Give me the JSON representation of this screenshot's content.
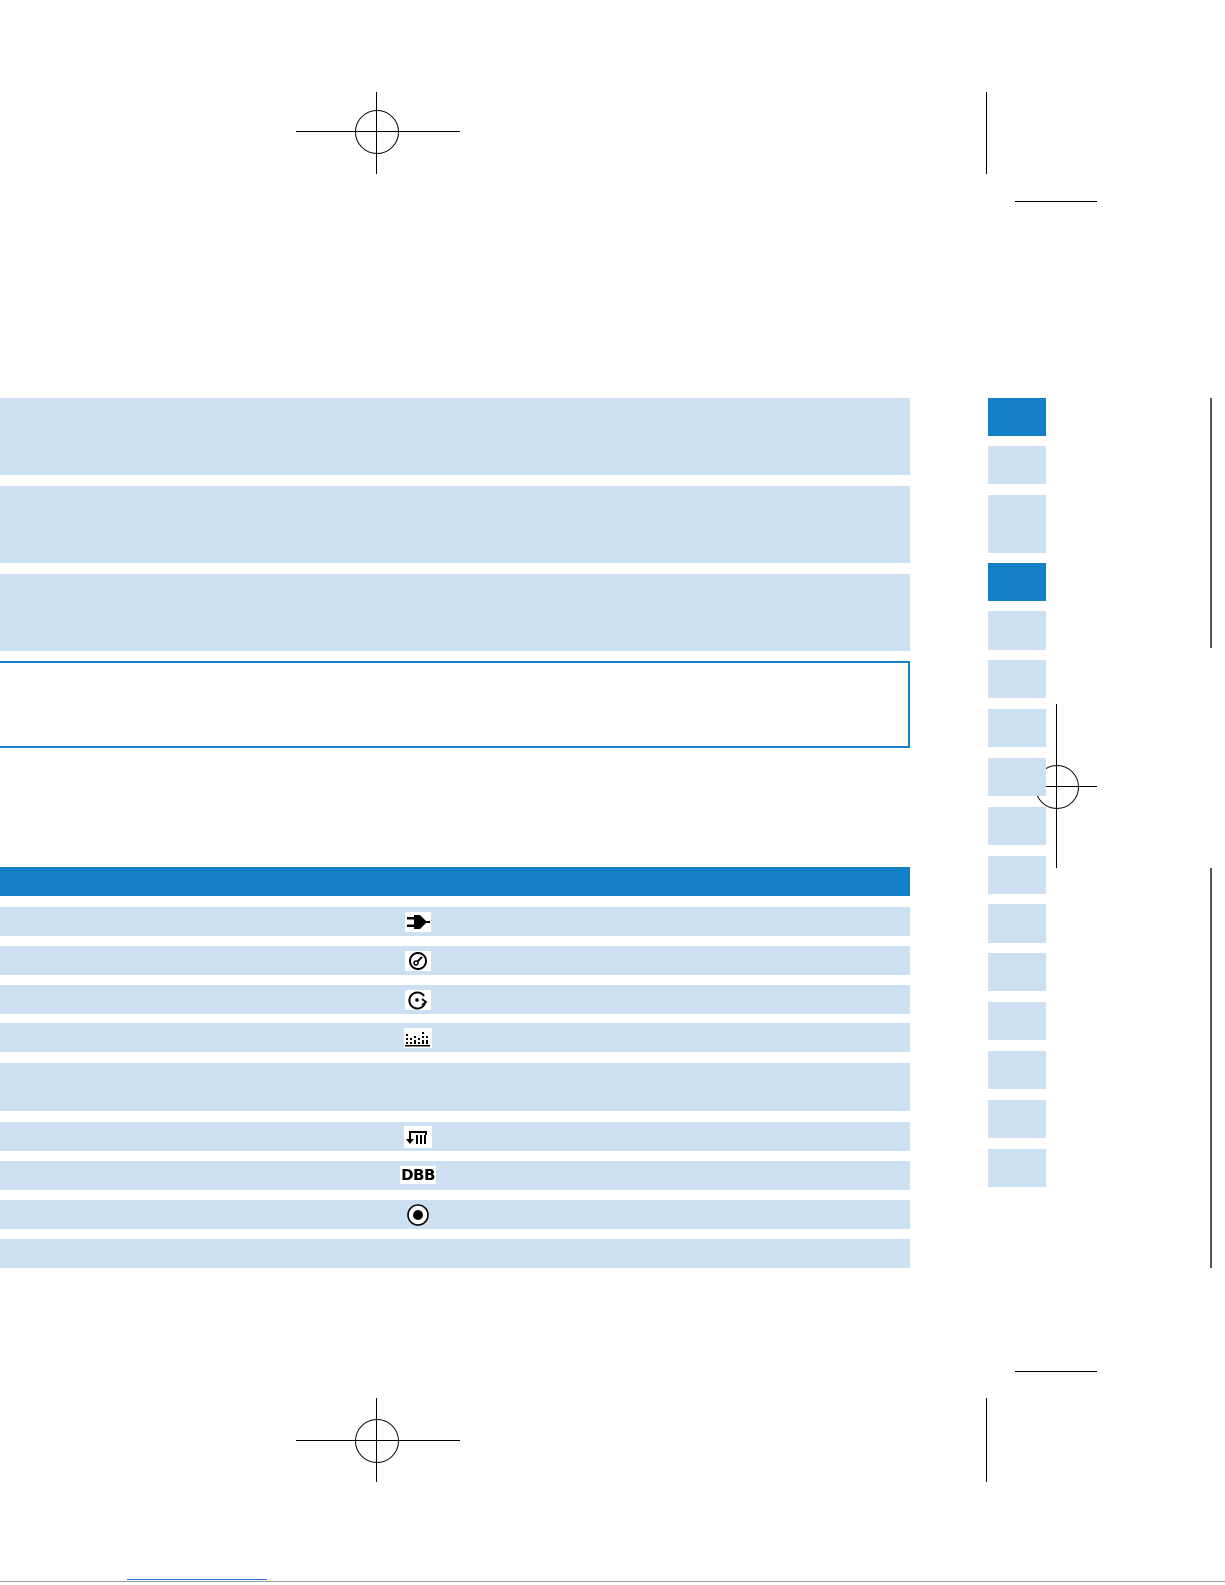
{
  "colors": {
    "accent_blue": "#127fc7",
    "panel_light_blue": "#cce0f2"
  },
  "info_panels": [
    {
      "kind": "filled"
    },
    {
      "kind": "filled"
    },
    {
      "kind": "filled"
    },
    {
      "kind": "outlined"
    }
  ],
  "icon_table": {
    "rows": [
      {
        "icon": "power-plug-icon"
      },
      {
        "icon": "disc-check-icon"
      },
      {
        "icon": "disc-arrow-icon"
      },
      {
        "icon": "equalizer-icon"
      },
      {
        "icon": ""
      },
      {
        "icon": "repeat-all-icon"
      },
      {
        "icon": "dbb-icon",
        "icon_text": "DBB"
      },
      {
        "icon": "record-icon"
      },
      {
        "icon": ""
      }
    ]
  },
  "side_tabs": [
    {
      "state": "active"
    },
    {
      "state": "inactive"
    },
    {
      "state": "inactive"
    },
    {
      "state": "active"
    },
    {
      "state": "inactive"
    },
    {
      "state": "inactive"
    },
    {
      "state": "inactive"
    },
    {
      "state": "inactive"
    },
    {
      "state": "inactive"
    },
    {
      "state": "inactive"
    },
    {
      "state": "inactive"
    },
    {
      "state": "inactive"
    },
    {
      "state": "inactive"
    },
    {
      "state": "inactive"
    },
    {
      "state": "inactive"
    },
    {
      "state": "inactive"
    }
  ]
}
